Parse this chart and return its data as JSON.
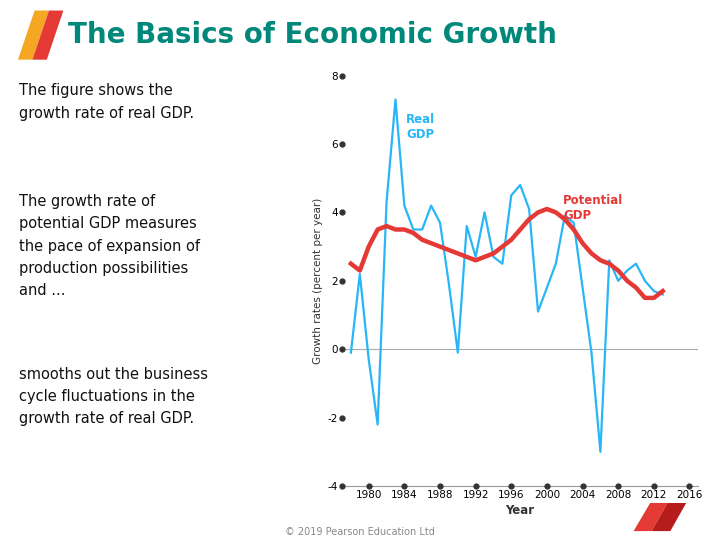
{
  "title": "The Basics of Economic Growth",
  "title_color": "#00897B",
  "subtitle1": "The figure shows the\ngrowth rate of real GDP.",
  "subtitle2": "The growth rate of\npotential GDP measures\nthe pace of expansion of\nproduction possibilities\nand ...",
  "subtitle3": "smooths out the business\ncycle fluctuations in the\ngrowth rate of real GDP.",
  "footer": "© 2019 Pearson Education Ltd",
  "ylabel": "Growth rates (percent per year)",
  "xlabel": "Year",
  "ylim": [
    -4,
    8
  ],
  "yticks": [
    -4,
    -2,
    0,
    2,
    4,
    6,
    8
  ],
  "real_gdp_color": "#29B6F6",
  "potential_gdp_color": "#E53935",
  "background_color": "#FFFFFF",
  "real_gdp_label": "Real\nGDP",
  "potential_gdp_label": "Potential\nGDP",
  "real_gdp_years": [
    1978,
    1979,
    1980,
    1981,
    1982,
    1983,
    1984,
    1985,
    1986,
    1987,
    1988,
    1989,
    1990,
    1991,
    1992,
    1993,
    1994,
    1995,
    1996,
    1997,
    1998,
    1999,
    2000,
    2001,
    2002,
    2003,
    2004,
    2005,
    2006,
    2007,
    2008,
    2009,
    2010,
    2011,
    2012,
    2013
  ],
  "real_gdp": [
    -0.1,
    2.2,
    -0.3,
    -2.2,
    4.3,
    7.3,
    4.2,
    3.5,
    3.5,
    4.2,
    3.7,
    1.9,
    -0.1,
    3.6,
    2.7,
    4.0,
    2.7,
    2.5,
    4.5,
    4.8,
    4.1,
    1.1,
    1.8,
    2.5,
    3.9,
    3.7,
    1.8,
    -0.1,
    -3.0,
    2.6,
    2.0,
    2.3,
    2.5,
    2.0,
    1.7,
    1.6
  ],
  "potential_gdp_years": [
    1978,
    1979,
    1980,
    1981,
    1982,
    1983,
    1984,
    1985,
    1986,
    1987,
    1988,
    1989,
    1990,
    1991,
    1992,
    1993,
    1994,
    1995,
    1996,
    1997,
    1998,
    1999,
    2000,
    2001,
    2002,
    2003,
    2004,
    2005,
    2006,
    2007,
    2008,
    2009,
    2010,
    2011,
    2012,
    2013
  ],
  "potential_gdp": [
    2.5,
    2.3,
    3.0,
    3.5,
    3.6,
    3.5,
    3.5,
    3.4,
    3.2,
    3.1,
    3.0,
    2.9,
    2.8,
    2.7,
    2.6,
    2.7,
    2.8,
    3.0,
    3.2,
    3.5,
    3.8,
    4.0,
    4.1,
    4.0,
    3.8,
    3.5,
    3.1,
    2.8,
    2.6,
    2.5,
    2.3,
    2.0,
    1.8,
    1.5,
    1.5,
    1.7
  ],
  "xticks": [
    1980,
    1984,
    1988,
    1992,
    1996,
    2000,
    2004,
    2008,
    2012,
    2016
  ],
  "xlim": [
    1977,
    2017
  ]
}
